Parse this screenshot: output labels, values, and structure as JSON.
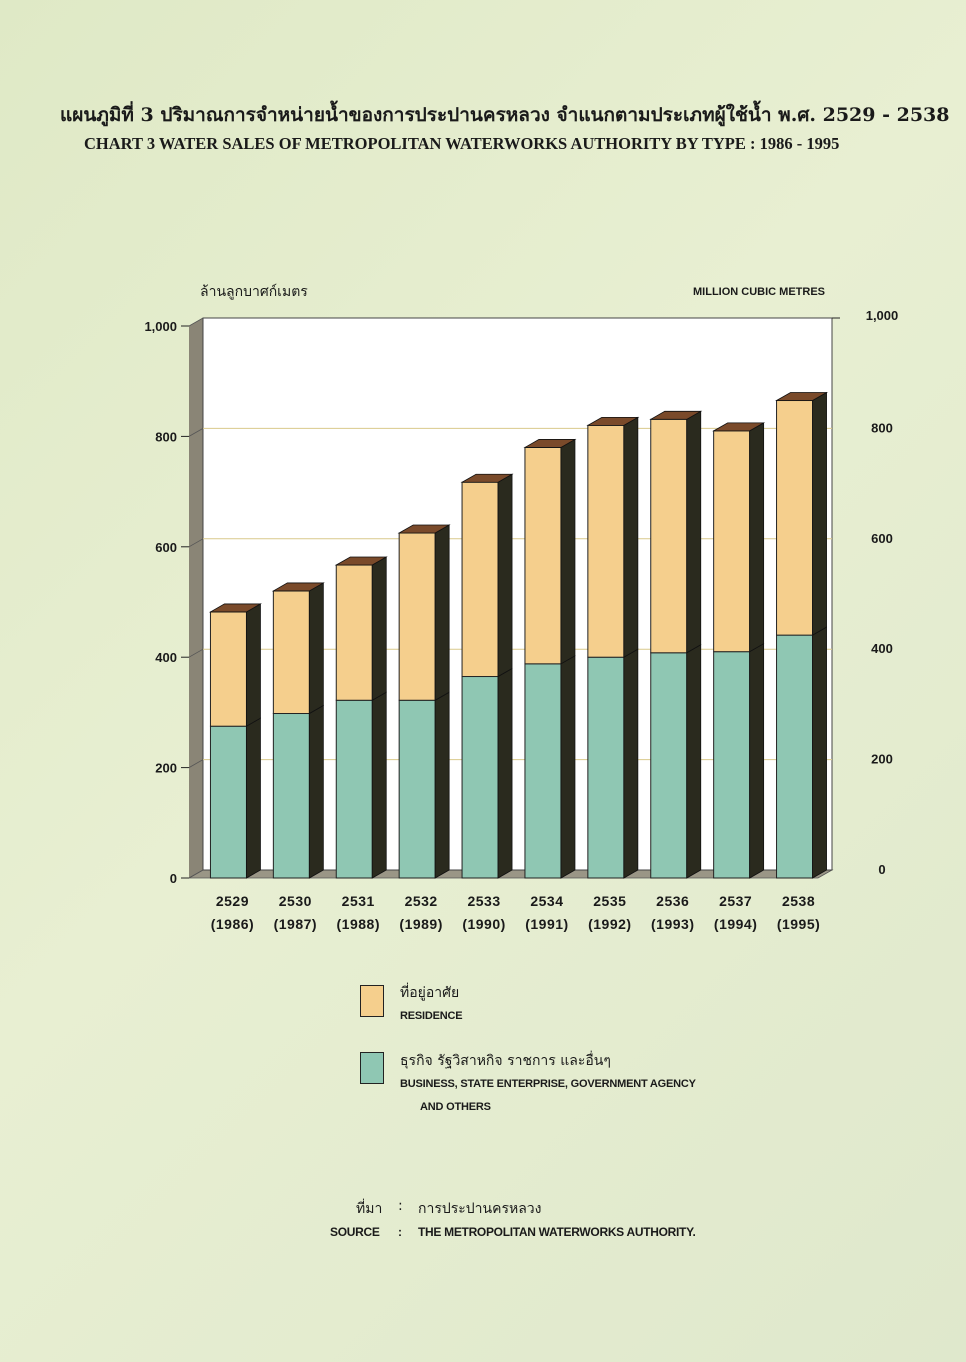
{
  "title_th": "แผนภูมิที่ 3 ปริมาณการจำหน่ายน้ำของการประปานครหลวง จำแนกตามประเภทผู้ใช้น้ำ พ.ศ. 2529 - 2538",
  "title_en": "CHART 3 WATER SALES OF METROPOLITAN WATERWORKS AUTHORITY BY TYPE : 1986 - 1995",
  "chart_data": {
    "type": "bar",
    "stacked": true,
    "unit_th": "ล้านลูกบาศก์เมตร",
    "unit_en": "MILLION CUBIC METRES",
    "categories": [
      "2529",
      "2530",
      "2531",
      "2532",
      "2533",
      "2534",
      "2535",
      "2536",
      "2537",
      "2538"
    ],
    "categories_sub": [
      "(1986)",
      "(1987)",
      "(1988)",
      "(1989)",
      "(1990)",
      "(1991)",
      "(1992)",
      "(1993)",
      "(1994)",
      "(1995)"
    ],
    "series": [
      {
        "name": "ธุรกิจ รัฐวิสาหกิจ ราชการ และอื่นๆ",
        "name_en": "BUSINESS, STATE ENTERPRISE, GOVERNMENT AGENCY AND OTHERS",
        "color": "#8fc7b3",
        "values": [
          275,
          298,
          322,
          322,
          365,
          388,
          400,
          408,
          410,
          440
        ]
      },
      {
        "name": "ที่อยู่อาศัย",
        "name_en": "RESIDENCE",
        "color": "#f5cf8d",
        "values": [
          207,
          222,
          245,
          303,
          352,
          392,
          420,
          423,
          400,
          425
        ]
      }
    ],
    "ylim": [
      0,
      1000
    ],
    "yticks": [
      0,
      200,
      400,
      600,
      800,
      1000
    ],
    "ytick_labels": [
      "0",
      "200",
      "400",
      "600",
      "800",
      "1,000"
    ],
    "grid": true
  },
  "legend": {
    "residence_th": "ที่อยู่อาศัย",
    "residence_en": "RESIDENCE",
    "business_th": "ธุรกิจ รัฐวิสาหกิจ ราชการ และอื่นๆ",
    "business_en_1": "BUSINESS, STATE ENTERPRISE, GOVERNMENT AGENCY",
    "business_en_2": "AND OTHERS"
  },
  "source": {
    "label_th": "ที่มา",
    "colon": ":",
    "value_th": "การประปานครหลวง",
    "label_en": "SOURCE",
    "value_en": "THE METROPOLITAN WATERWORKS AUTHORITY."
  },
  "colors": {
    "plot_bg": "#ffffff",
    "gridline": "#d9c98c",
    "wall": "#8a8576",
    "bar_side": "#2a2a1e",
    "bar_top": "#7a4a2a"
  }
}
